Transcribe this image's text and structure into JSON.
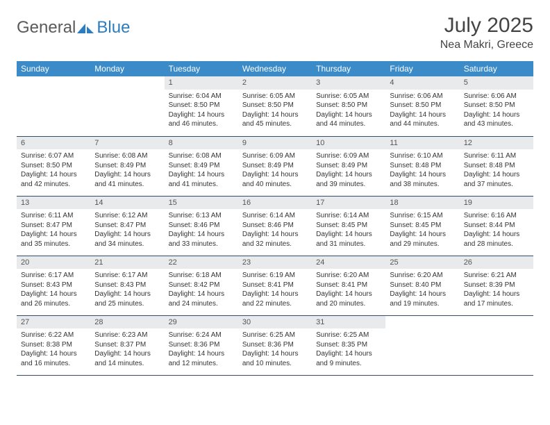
{
  "logo": {
    "general": "General",
    "blue": "Blue"
  },
  "title": "July 2025",
  "location": "Nea Makri, Greece",
  "colors": {
    "header_bg": "#3b8bc9",
    "header_text": "#ffffff",
    "daynum_bg": "#e8eaec",
    "border": "#344a6b",
    "logo_gray": "#5a5a5a",
    "logo_blue": "#2b7cc0",
    "body_text": "#333333"
  },
  "weekdays": [
    "Sunday",
    "Monday",
    "Tuesday",
    "Wednesday",
    "Thursday",
    "Friday",
    "Saturday"
  ],
  "weeks": [
    [
      {
        "empty": true
      },
      {
        "empty": true
      },
      {
        "day": "1",
        "sunrise": "Sunrise: 6:04 AM",
        "sunset": "Sunset: 8:50 PM",
        "daylight1": "Daylight: 14 hours",
        "daylight2": "and 46 minutes."
      },
      {
        "day": "2",
        "sunrise": "Sunrise: 6:05 AM",
        "sunset": "Sunset: 8:50 PM",
        "daylight1": "Daylight: 14 hours",
        "daylight2": "and 45 minutes."
      },
      {
        "day": "3",
        "sunrise": "Sunrise: 6:05 AM",
        "sunset": "Sunset: 8:50 PM",
        "daylight1": "Daylight: 14 hours",
        "daylight2": "and 44 minutes."
      },
      {
        "day": "4",
        "sunrise": "Sunrise: 6:06 AM",
        "sunset": "Sunset: 8:50 PM",
        "daylight1": "Daylight: 14 hours",
        "daylight2": "and 44 minutes."
      },
      {
        "day": "5",
        "sunrise": "Sunrise: 6:06 AM",
        "sunset": "Sunset: 8:50 PM",
        "daylight1": "Daylight: 14 hours",
        "daylight2": "and 43 minutes."
      }
    ],
    [
      {
        "day": "6",
        "sunrise": "Sunrise: 6:07 AM",
        "sunset": "Sunset: 8:50 PM",
        "daylight1": "Daylight: 14 hours",
        "daylight2": "and 42 minutes."
      },
      {
        "day": "7",
        "sunrise": "Sunrise: 6:08 AM",
        "sunset": "Sunset: 8:49 PM",
        "daylight1": "Daylight: 14 hours",
        "daylight2": "and 41 minutes."
      },
      {
        "day": "8",
        "sunrise": "Sunrise: 6:08 AM",
        "sunset": "Sunset: 8:49 PM",
        "daylight1": "Daylight: 14 hours",
        "daylight2": "and 41 minutes."
      },
      {
        "day": "9",
        "sunrise": "Sunrise: 6:09 AM",
        "sunset": "Sunset: 8:49 PM",
        "daylight1": "Daylight: 14 hours",
        "daylight2": "and 40 minutes."
      },
      {
        "day": "10",
        "sunrise": "Sunrise: 6:09 AM",
        "sunset": "Sunset: 8:49 PM",
        "daylight1": "Daylight: 14 hours",
        "daylight2": "and 39 minutes."
      },
      {
        "day": "11",
        "sunrise": "Sunrise: 6:10 AM",
        "sunset": "Sunset: 8:48 PM",
        "daylight1": "Daylight: 14 hours",
        "daylight2": "and 38 minutes."
      },
      {
        "day": "12",
        "sunrise": "Sunrise: 6:11 AM",
        "sunset": "Sunset: 8:48 PM",
        "daylight1": "Daylight: 14 hours",
        "daylight2": "and 37 minutes."
      }
    ],
    [
      {
        "day": "13",
        "sunrise": "Sunrise: 6:11 AM",
        "sunset": "Sunset: 8:47 PM",
        "daylight1": "Daylight: 14 hours",
        "daylight2": "and 35 minutes."
      },
      {
        "day": "14",
        "sunrise": "Sunrise: 6:12 AM",
        "sunset": "Sunset: 8:47 PM",
        "daylight1": "Daylight: 14 hours",
        "daylight2": "and 34 minutes."
      },
      {
        "day": "15",
        "sunrise": "Sunrise: 6:13 AM",
        "sunset": "Sunset: 8:46 PM",
        "daylight1": "Daylight: 14 hours",
        "daylight2": "and 33 minutes."
      },
      {
        "day": "16",
        "sunrise": "Sunrise: 6:14 AM",
        "sunset": "Sunset: 8:46 PM",
        "daylight1": "Daylight: 14 hours",
        "daylight2": "and 32 minutes."
      },
      {
        "day": "17",
        "sunrise": "Sunrise: 6:14 AM",
        "sunset": "Sunset: 8:45 PM",
        "daylight1": "Daylight: 14 hours",
        "daylight2": "and 31 minutes."
      },
      {
        "day": "18",
        "sunrise": "Sunrise: 6:15 AM",
        "sunset": "Sunset: 8:45 PM",
        "daylight1": "Daylight: 14 hours",
        "daylight2": "and 29 minutes."
      },
      {
        "day": "19",
        "sunrise": "Sunrise: 6:16 AM",
        "sunset": "Sunset: 8:44 PM",
        "daylight1": "Daylight: 14 hours",
        "daylight2": "and 28 minutes."
      }
    ],
    [
      {
        "day": "20",
        "sunrise": "Sunrise: 6:17 AM",
        "sunset": "Sunset: 8:43 PM",
        "daylight1": "Daylight: 14 hours",
        "daylight2": "and 26 minutes."
      },
      {
        "day": "21",
        "sunrise": "Sunrise: 6:17 AM",
        "sunset": "Sunset: 8:43 PM",
        "daylight1": "Daylight: 14 hours",
        "daylight2": "and 25 minutes."
      },
      {
        "day": "22",
        "sunrise": "Sunrise: 6:18 AM",
        "sunset": "Sunset: 8:42 PM",
        "daylight1": "Daylight: 14 hours",
        "daylight2": "and 24 minutes."
      },
      {
        "day": "23",
        "sunrise": "Sunrise: 6:19 AM",
        "sunset": "Sunset: 8:41 PM",
        "daylight1": "Daylight: 14 hours",
        "daylight2": "and 22 minutes."
      },
      {
        "day": "24",
        "sunrise": "Sunrise: 6:20 AM",
        "sunset": "Sunset: 8:41 PM",
        "daylight1": "Daylight: 14 hours",
        "daylight2": "and 20 minutes."
      },
      {
        "day": "25",
        "sunrise": "Sunrise: 6:20 AM",
        "sunset": "Sunset: 8:40 PM",
        "daylight1": "Daylight: 14 hours",
        "daylight2": "and 19 minutes."
      },
      {
        "day": "26",
        "sunrise": "Sunrise: 6:21 AM",
        "sunset": "Sunset: 8:39 PM",
        "daylight1": "Daylight: 14 hours",
        "daylight2": "and 17 minutes."
      }
    ],
    [
      {
        "day": "27",
        "sunrise": "Sunrise: 6:22 AM",
        "sunset": "Sunset: 8:38 PM",
        "daylight1": "Daylight: 14 hours",
        "daylight2": "and 16 minutes."
      },
      {
        "day": "28",
        "sunrise": "Sunrise: 6:23 AM",
        "sunset": "Sunset: 8:37 PM",
        "daylight1": "Daylight: 14 hours",
        "daylight2": "and 14 minutes."
      },
      {
        "day": "29",
        "sunrise": "Sunrise: 6:24 AM",
        "sunset": "Sunset: 8:36 PM",
        "daylight1": "Daylight: 14 hours",
        "daylight2": "and 12 minutes."
      },
      {
        "day": "30",
        "sunrise": "Sunrise: 6:25 AM",
        "sunset": "Sunset: 8:36 PM",
        "daylight1": "Daylight: 14 hours",
        "daylight2": "and 10 minutes."
      },
      {
        "day": "31",
        "sunrise": "Sunrise: 6:25 AM",
        "sunset": "Sunset: 8:35 PM",
        "daylight1": "Daylight: 14 hours",
        "daylight2": "and 9 minutes."
      },
      {
        "empty": true
      },
      {
        "empty": true
      }
    ]
  ]
}
